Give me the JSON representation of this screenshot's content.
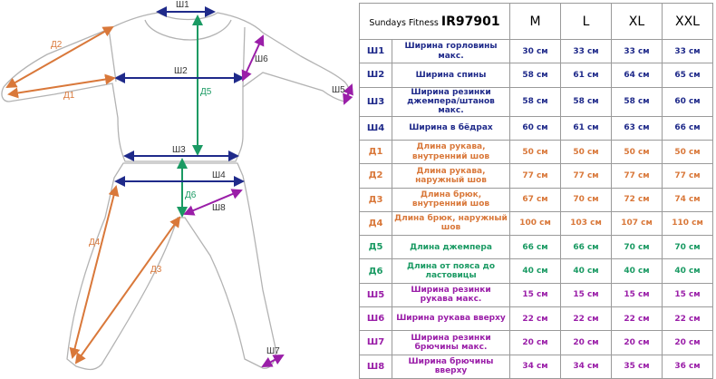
{
  "table": {
    "brand": "Sundays Fitness",
    "model": "IR97901",
    "sizes": [
      "M",
      "L",
      "XL",
      "XXL"
    ],
    "rows": [
      {
        "code": "Ш1",
        "name": "Ширина горловины макс.",
        "values": [
          "30 см",
          "33 см",
          "33 см",
          "33 см"
        ],
        "color": "#1f2a8a"
      },
      {
        "code": "Ш2",
        "name": "Ширина спины",
        "values": [
          "58 см",
          "61 см",
          "64 см",
          "65 см"
        ],
        "color": "#1f2a8a"
      },
      {
        "code": "Ш3",
        "name": "Ширина резинки джемпера/штанов макс.",
        "values": [
          "58 см",
          "58 см",
          "58 см",
          "60 см"
        ],
        "color": "#1f2a8a"
      },
      {
        "code": "Ш4",
        "name": "Ширина в бёдрах",
        "values": [
          "60 см",
          "61 см",
          "63 см",
          "66 см"
        ],
        "color": "#1f2a8a"
      },
      {
        "code": "Д1",
        "name": "Длина рукава, внутренний шов",
        "values": [
          "50 см",
          "50 см",
          "50 см",
          "50 см"
        ],
        "color": "#d9783a"
      },
      {
        "code": "Д2",
        "name": "Длина рукава, наружный шов",
        "values": [
          "77 см",
          "77 см",
          "77 см",
          "77 см"
        ],
        "color": "#d9783a"
      },
      {
        "code": "Д3",
        "name": "Длина брюк, внутренний шов",
        "values": [
          "67 см",
          "70 см",
          "72 см",
          "74 см"
        ],
        "color": "#d9783a"
      },
      {
        "code": "Д4",
        "name": "Длина брюк, наружный шов",
        "values": [
          "100 см",
          "103 см",
          "107 см",
          "110 см"
        ],
        "color": "#d9783a"
      },
      {
        "code": "Д5",
        "name": "Длина джемпера",
        "values": [
          "66 см",
          "66 см",
          "70 см",
          "70 см"
        ],
        "color": "#1a9a63"
      },
      {
        "code": "Д6",
        "name": "Длина от пояса до ластовицы",
        "values": [
          "40 см",
          "40 см",
          "40 см",
          "40 см"
        ],
        "color": "#1a9a63"
      },
      {
        "code": "Ш5",
        "name": "Ширина резинки рукава макс.",
        "values": [
          "15 см",
          "15 см",
          "15 см",
          "15 см"
        ],
        "color": "#9a1ea8"
      },
      {
        "code": "Ш6",
        "name": "Ширина рукава вверху",
        "values": [
          "22 см",
          "22 см",
          "22 см",
          "22 см"
        ],
        "color": "#9a1ea8"
      },
      {
        "code": "Ш7",
        "name": "Ширина резинки брючины макс.",
        "values": [
          "20 см",
          "20 см",
          "20 см",
          "20 см"
        ],
        "color": "#9a1ea8"
      },
      {
        "code": "Ш8",
        "name": "Ширина брючины вверху",
        "values": [
          "34 см",
          "34 см",
          "35 см",
          "36 см"
        ],
        "color": "#9a1ea8"
      }
    ]
  },
  "diagram": {
    "labels": {
      "sh1": "Ш1",
      "sh2": "Ш2",
      "sh3": "Ш3",
      "sh4": "Ш4",
      "sh5": "Ш5",
      "sh6": "Ш6",
      "sh7": "Ш7",
      "sh8": "Ш8",
      "d1": "Д1",
      "d2": "Д2",
      "d3": "Д3",
      "d4": "Д4",
      "d5": "Д5",
      "d6": "Д6"
    },
    "colors": {
      "blue": "#1f2a8a",
      "orange": "#d9783a",
      "green": "#1a9a63",
      "purple": "#9a1ea8",
      "outline": "#b3b3b3"
    }
  }
}
